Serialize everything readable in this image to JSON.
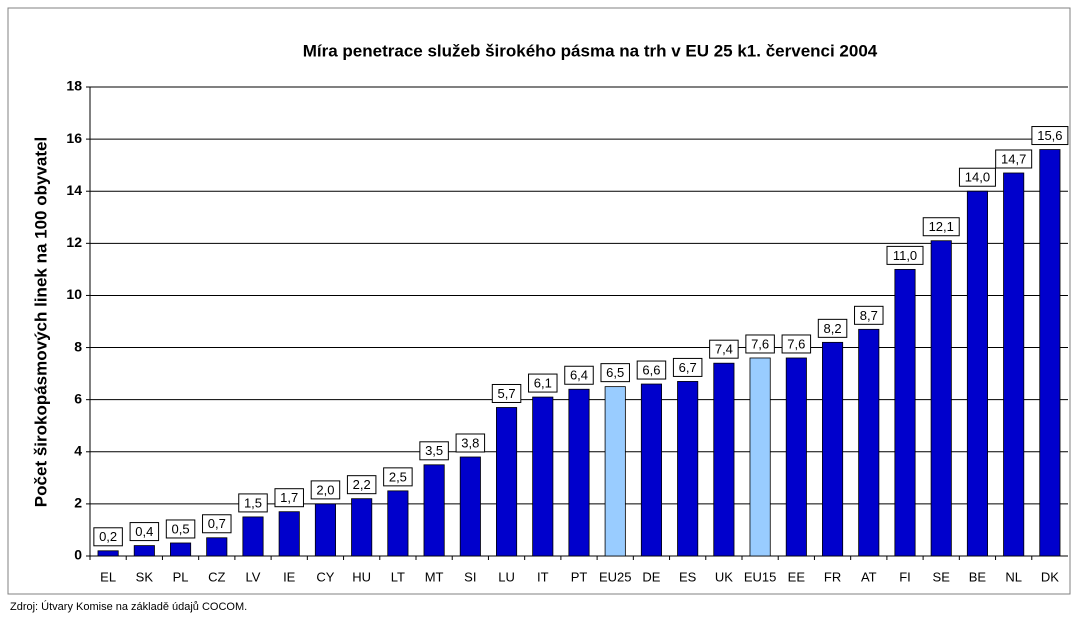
{
  "chart_data": {
    "type": "bar",
    "title": "Míra penetrace služeb širokého pásma  na trh v EU 25 k1. červenci 2004",
    "y_label": "Počet širokopásmových linek na 100 obyvatel",
    "source": "Zdroj: Útvary Komise na základě údajů COCOM.",
    "categories": [
      "EL",
      "SK",
      "PL",
      "CZ",
      "LV",
      "IE",
      "CY",
      "HU",
      "LT",
      "MT",
      "SI",
      "LU",
      "IT",
      "PT",
      "EU25",
      "DE",
      "ES",
      "UK",
      "EU15",
      "EE",
      "FR",
      "AT",
      "FI",
      "SE",
      "BE",
      "NL",
      "DK"
    ],
    "values": [
      0.2,
      0.4,
      0.5,
      0.7,
      1.5,
      1.7,
      2.0,
      2.2,
      2.5,
      3.5,
      3.8,
      5.7,
      6.1,
      6.4,
      6.5,
      6.6,
      6.7,
      7.4,
      7.6,
      7.6,
      8.2,
      8.7,
      11.0,
      12.1,
      14.0,
      14.7,
      15.6
    ],
    "value_labels": [
      "0,2",
      "0,4",
      "0,5",
      "0,7",
      "1,5",
      "1,7",
      "2,0",
      "2,2",
      "2,5",
      "3,5",
      "3,8",
      "5,7",
      "6,1",
      "6,4",
      "6,5",
      "6,6",
      "6,7",
      "7,4",
      "7,6",
      "7,6",
      "8,2",
      "8,7",
      "11,0",
      "12,1",
      "14,0",
      "14,7",
      "15,6"
    ],
    "colors": [
      "#0000cc",
      "#0000cc",
      "#0000cc",
      "#0000cc",
      "#0000cc",
      "#0000cc",
      "#0000cc",
      "#0000cc",
      "#0000cc",
      "#0000cc",
      "#0000cc",
      "#0000cc",
      "#0000cc",
      "#0000cc",
      "#99ccff",
      "#0000cc",
      "#0000cc",
      "#0000cc",
      "#99ccff",
      "#0000cc",
      "#0000cc",
      "#0000cc",
      "#0000cc",
      "#0000cc",
      "#0000cc",
      "#0000cc",
      "#0000cc"
    ],
    "ylim": [
      0,
      18
    ],
    "yticks": [
      0,
      2,
      4,
      6,
      8,
      10,
      12,
      14,
      16,
      18
    ],
    "grid": true
  }
}
